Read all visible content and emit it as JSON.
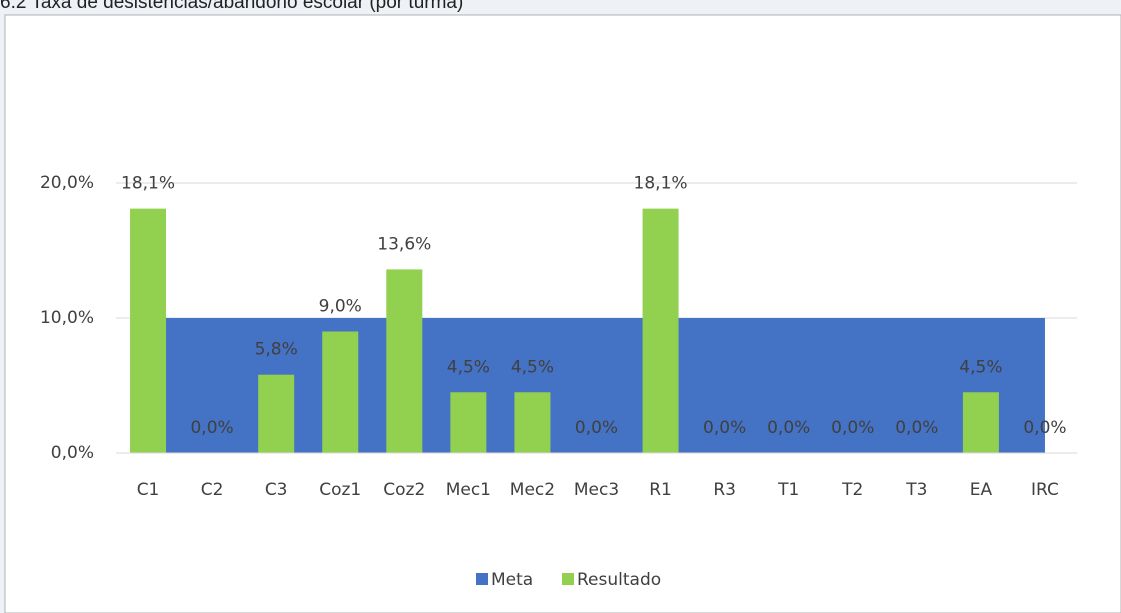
{
  "chart_data": {
    "type": "bar",
    "title": "6.2 Taxa de desistências/abandono escolar (por turma)",
    "categories": [
      "C1",
      "C2",
      "C3",
      "Coz1",
      "Coz2",
      "Mec1",
      "Mec2",
      "Mec3",
      "R1",
      "R3",
      "T1",
      "T2",
      "T3",
      "EA",
      "IRC"
    ],
    "series": [
      {
        "name": "Meta",
        "color": "#4472c4",
        "kind": "area",
        "values": [
          10,
          10,
          10,
          10,
          10,
          10,
          10,
          10,
          10,
          10,
          10,
          10,
          10,
          10,
          10
        ]
      },
      {
        "name": "Resultado",
        "color": "#92d050",
        "kind": "bar",
        "values": [
          18.1,
          0,
          5.8,
          9.0,
          13.6,
          4.5,
          4.5,
          0,
          18.1,
          0,
          0,
          0,
          0,
          4.5,
          0
        ],
        "value_labels": [
          "18,1%",
          "0,0%",
          "5,8%",
          "9,0%",
          "13,6%",
          "4,5%",
          "4,5%",
          "0,0%",
          "18,1%",
          "0,0%",
          "0,0%",
          "0,0%",
          "0,0%",
          "4,5%",
          "0,0%"
        ]
      }
    ],
    "ylim": [
      0,
      20
    ],
    "yticks": [
      {
        "value": 0,
        "label": "0,0%"
      },
      {
        "value": 10,
        "label": "10,0%"
      },
      {
        "value": 20,
        "label": "20,0%"
      }
    ],
    "grid": true,
    "legend": "bottom"
  }
}
